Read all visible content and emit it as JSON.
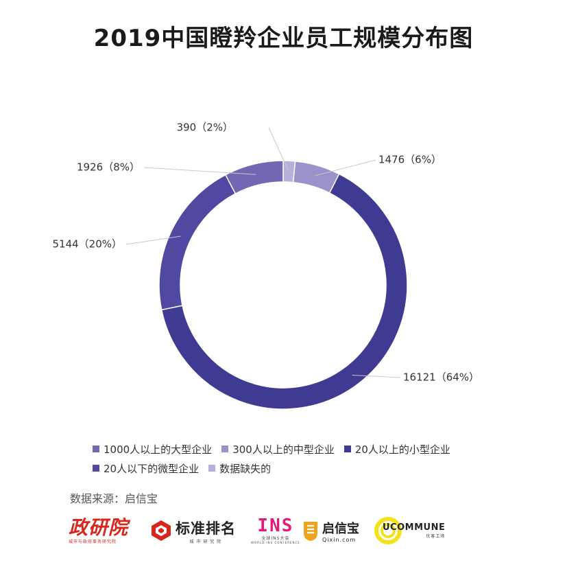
{
  "title": "2019中国瞪羚企业员工规模分布图",
  "chart_data": {
    "type": "donut",
    "title": "2019中国瞪羚企业员工规模分布图",
    "series": [
      {
        "name": "1000人以上的大型企业",
        "value": 1926,
        "percent_label": "8%",
        "color": "#7367b4"
      },
      {
        "name": "300人以上的中型企业",
        "value": 1476,
        "percent_label": "6%",
        "color": "#9a93cb"
      },
      {
        "name": "20人以上的小型企业",
        "value": 16121,
        "percent_label": "64%",
        "color": "#3f3a92"
      },
      {
        "name": "20人以下的微型企业",
        "value": 5144,
        "percent_label": "20%",
        "color": "#5148a2"
      },
      {
        "name": "数据缺失的",
        "value": 390,
        "percent_label": "2%",
        "color": "#b6b0dc"
      }
    ],
    "slice_order": [
      "数据缺失的",
      "300人以上的中型企业",
      "20人以上的小型企业",
      "20人以下的微型企业",
      "1000人以上的大型企业"
    ],
    "data_labels": [
      "390（2%）",
      "1476（6%）",
      "16121（64%）",
      "5144（20%）",
      "1926（8%）"
    ],
    "legend_position": "bottom"
  },
  "legend": {
    "row1": [
      "1000人以上的大型企业",
      "300人以上的中型企业",
      "20人以上的小型企业"
    ],
    "row2": [
      "20人以下的微型企业",
      "数据缺失的"
    ]
  },
  "source": "数据来源：启信宝",
  "logos": {
    "zhengyanyuan": {
      "name": "政研院",
      "sub": "城市与政府事务研究院"
    },
    "biaozhun": {
      "name": "标准排名",
      "sub": "城 市 研 究 院"
    },
    "ins": {
      "name": "INS",
      "sub": "全球INS大会",
      "sub2": "WORLD INS CONFERENCE"
    },
    "qixin": {
      "name": "启信宝",
      "sub": "Qixin.com"
    },
    "ucommune": {
      "name": "UCOMMUNE",
      "sub": "优客工场"
    }
  }
}
